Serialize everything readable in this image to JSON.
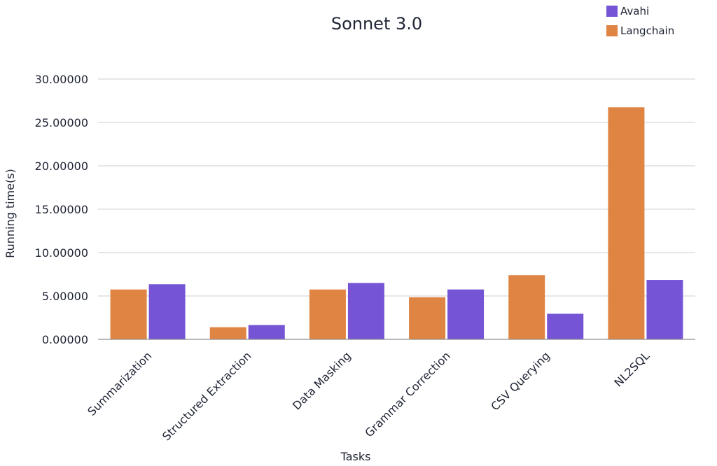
{
  "chart_data": {
    "type": "bar",
    "title": "Sonnet 3.0",
    "xlabel": "Tasks",
    "ylabel": "Running time(s)",
    "categories": [
      "Summarization",
      "Structured Extraction",
      "Data Masking",
      "Grammar Correction",
      "CSV Querying",
      "NL2SQL"
    ],
    "series": [
      {
        "name": "Langchain",
        "color": "#e08444",
        "values": [
          5.75,
          1.4,
          5.75,
          4.85,
          7.4,
          26.75
        ]
      },
      {
        "name": "Avahi",
        "color": "#7555d6",
        "values": [
          6.35,
          1.65,
          6.5,
          5.75,
          2.95,
          6.85
        ]
      }
    ],
    "legend_order": [
      "Avahi",
      "Langchain"
    ],
    "ylim": [
      0,
      30
    ],
    "yticks": [
      0,
      5,
      10,
      15,
      20,
      25,
      30
    ],
    "ytick_labels": [
      "0.00000",
      "5.00000",
      "10.00000",
      "15.00000",
      "20.00000",
      "25.00000",
      "30.00000"
    ],
    "grid": true,
    "legend": "top-right"
  }
}
